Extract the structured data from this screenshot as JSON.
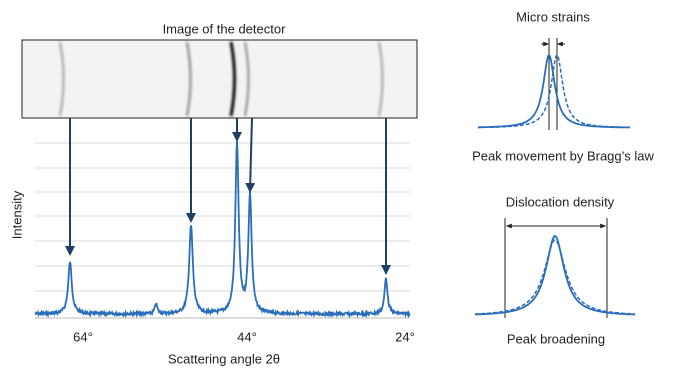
{
  "detector_title": "Image of the detector",
  "axis": {
    "y_label": "Intensity",
    "x_label": "Scattering angle 2θ",
    "x_ticks": [
      "64°",
      "44°",
      "24°"
    ]
  },
  "micro_strains": {
    "title": "Micro strains",
    "caption": "Peak movement by Bragg’s law"
  },
  "dislocation": {
    "title": "Dislocation density",
    "caption": "Peak broadening"
  }
}
